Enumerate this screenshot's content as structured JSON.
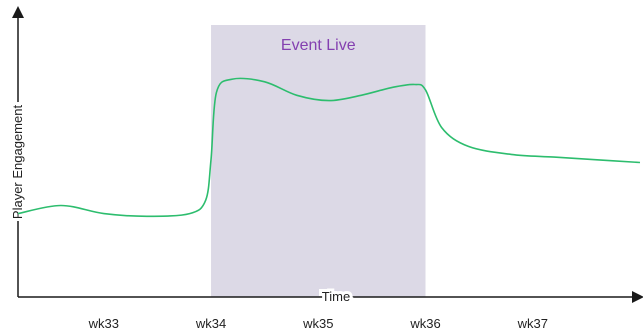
{
  "chart_data": {
    "type": "line",
    "xlabel": "Time",
    "ylabel": "Player Engagement",
    "categories": [
      "wk33",
      "wk34",
      "wk35",
      "wk36",
      "wk37"
    ],
    "xlim": [
      32.2,
      38.0
    ],
    "ylim": [
      0,
      1
    ],
    "grid": false,
    "annotations": [
      {
        "text": "Event Live",
        "x_start": 34.0,
        "x_end": 36.0
      }
    ],
    "series": [
      {
        "x": [
          32.2,
          32.6,
          33.0,
          33.4,
          33.8,
          33.95,
          34.0,
          34.05,
          34.2,
          34.5,
          34.8,
          35.1,
          35.4,
          35.7,
          35.9,
          36.0,
          36.15,
          36.4,
          36.8,
          37.2,
          37.6,
          38.0
        ],
        "y": [
          0.31,
          0.34,
          0.31,
          0.3,
          0.31,
          0.36,
          0.51,
          0.76,
          0.81,
          0.8,
          0.75,
          0.73,
          0.75,
          0.78,
          0.79,
          0.77,
          0.63,
          0.56,
          0.53,
          0.52,
          0.51,
          0.5
        ]
      }
    ],
    "colors": {
      "line": "#2dbd6e",
      "event_band": "#dcd9e6",
      "event_text": "#8440b0",
      "axis": "#1a1a1a"
    }
  }
}
